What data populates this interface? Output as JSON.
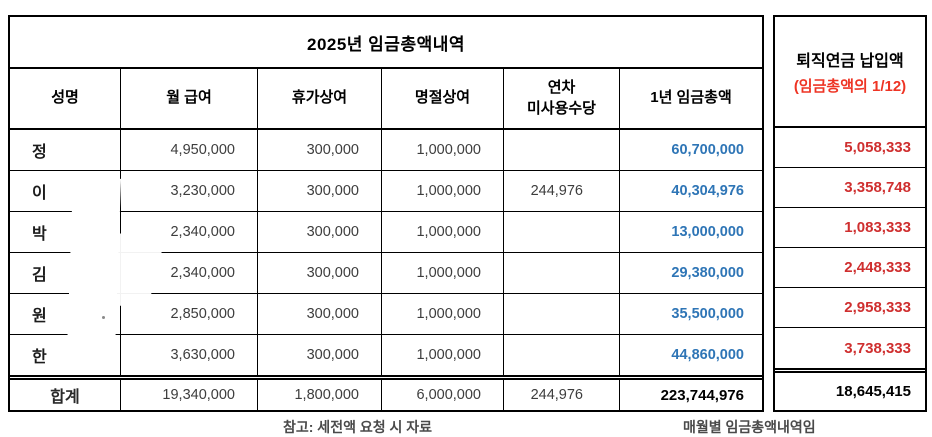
{
  "main_table": {
    "title": "2025년 임금총액내역",
    "columns": {
      "name": "성명",
      "monthly": "월 급여",
      "vacation": "휴가상여",
      "holiday": "명절상여",
      "unused": "연차\n미사용수당",
      "annual": "1년 임금총액"
    },
    "rows": [
      {
        "name": "정",
        "monthly": "4,950,000",
        "vacation": "300,000",
        "holiday": "1,000,000",
        "unused": "",
        "annual": "60,700,000"
      },
      {
        "name": "이",
        "monthly": "3,230,000",
        "vacation": "300,000",
        "holiday": "1,000,000",
        "unused": "244,976",
        "annual": "40,304,976"
      },
      {
        "name": "박",
        "monthly": "2,340,000",
        "vacation": "300,000",
        "holiday": "1,000,000",
        "unused": "",
        "annual": "13,000,000"
      },
      {
        "name": "김",
        "monthly": "2,340,000",
        "vacation": "300,000",
        "holiday": "1,000,000",
        "unused": "",
        "annual": "29,380,000"
      },
      {
        "name": "원",
        "monthly": "2,850,000",
        "vacation": "300,000",
        "holiday": "1,000,000",
        "unused": "",
        "annual": "35,500,000"
      },
      {
        "name": "한",
        "monthly": "3,630,000",
        "vacation": "300,000",
        "holiday": "1,000,000",
        "unused": "",
        "annual": "44,860,000"
      }
    ],
    "total": {
      "label": "합계",
      "monthly": "19,340,000",
      "vacation": "1,800,000",
      "holiday": "6,000,000",
      "unused": "244,976",
      "annual": "223,744,976"
    }
  },
  "pension_table": {
    "header_line1": "퇴직연금 납입액",
    "header_line2": "(임금총액의 1/12)",
    "values": [
      "5,058,333",
      "3,358,748",
      "1,083,333",
      "2,448,333",
      "2,958,333",
      "3,738,333"
    ],
    "total": "18,645,415"
  },
  "footer_captions": {
    "left_cutoff": "참고: 세전액 요청 시 자료",
    "right_cutoff": "매월별 임금총액내역임"
  },
  "colors": {
    "annual_blue": "#2e75b6",
    "pension_red": "#cf2f2f",
    "header_red": "#ee3424",
    "border": "#000000"
  }
}
